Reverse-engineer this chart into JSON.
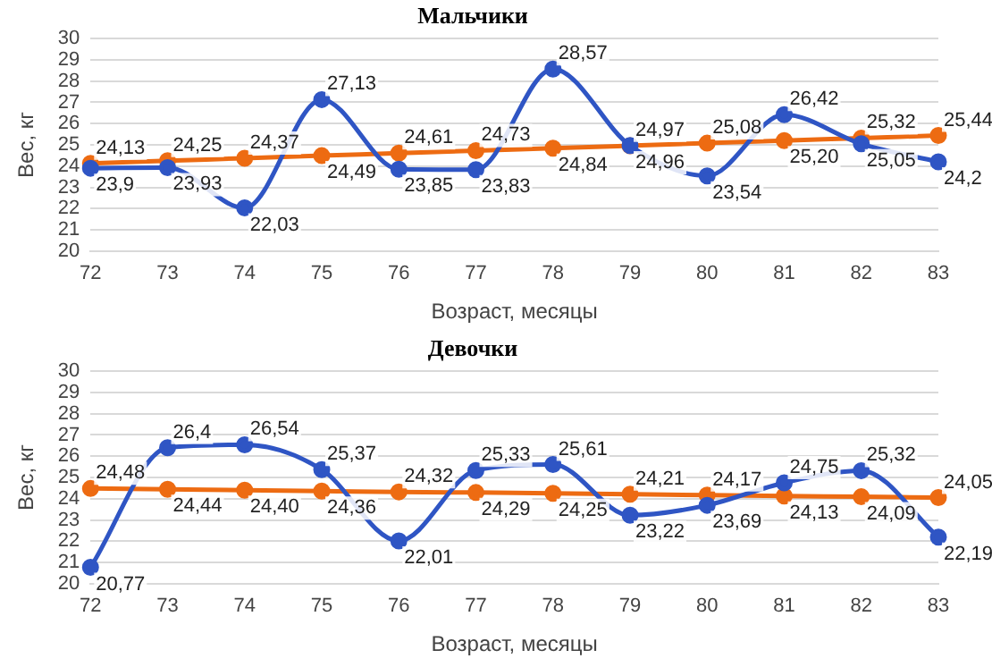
{
  "chart_data": [
    {
      "type": "line",
      "title": "Мальчики",
      "xlabel": "Возраст, месяцы",
      "ylabel": "Вес, кг",
      "categories": [
        "72",
        "73",
        "74",
        "75",
        "76",
        "77",
        "78",
        "79",
        "80",
        "81",
        "82",
        "83"
      ],
      "series": [
        {
          "color": "#2f55c4",
          "values": [
            23.9,
            23.93,
            22.03,
            27.13,
            23.85,
            23.83,
            28.57,
            24.97,
            23.54,
            26.42,
            25.05,
            24.2
          ],
          "value_labels": [
            "23,9",
            "23,93",
            "22,03",
            "27,13",
            "23,85",
            "23,83",
            "28,57",
            "24,97",
            "23,54",
            "26,42",
            "25,05",
            "24,2"
          ]
        },
        {
          "color": "#ed6b12",
          "values": [
            24.13,
            24.25,
            24.37,
            24.49,
            24.61,
            24.73,
            24.84,
            24.96,
            25.08,
            25.2,
            25.32,
            25.44
          ],
          "value_labels": [
            "24,13",
            "24,25",
            "24,37",
            "24,49",
            "24,61",
            "24,73",
            "24,84",
            "24,96",
            "25,08",
            "25,20",
            "25,32",
            "25,44"
          ]
        }
      ],
      "ylim": [
        20,
        30
      ],
      "yticks": [
        20,
        21,
        22,
        23,
        24,
        25,
        26,
        27,
        28,
        29,
        30
      ],
      "grid": "y",
      "marker": "circle",
      "line_style": "solid"
    },
    {
      "type": "line",
      "title": "Девочки",
      "xlabel": "Возраст, месяцы",
      "ylabel": "Вес, кг",
      "categories": [
        "72",
        "73",
        "74",
        "75",
        "76",
        "77",
        "78",
        "79",
        "80",
        "81",
        "82",
        "83"
      ],
      "series": [
        {
          "color": "#2f55c4",
          "values": [
            20.77,
            26.4,
            26.54,
            25.37,
            22.01,
            25.33,
            25.61,
            23.22,
            23.69,
            24.75,
            25.32,
            22.19
          ],
          "value_labels": [
            "20,77",
            "26,4",
            "26,54",
            "25,37",
            "22,01",
            "25,33",
            "25,61",
            "23,22",
            "23,69",
            "24,75",
            "25,32",
            "22,19"
          ]
        },
        {
          "color": "#ed6b12",
          "values": [
            24.48,
            24.44,
            24.4,
            24.36,
            24.32,
            24.29,
            24.25,
            24.21,
            24.17,
            24.13,
            24.09,
            24.05
          ],
          "value_labels": [
            "24,48",
            "24,44",
            "24,40",
            "24,36",
            "24,32",
            "24,29",
            "24,25",
            "24,21",
            "24,17",
            "24,13",
            "24,09",
            "24,05"
          ]
        }
      ],
      "ylim": [
        20,
        30
      ],
      "yticks": [
        20,
        21,
        22,
        23,
        24,
        25,
        26,
        27,
        28,
        29,
        30
      ],
      "grid": "y",
      "marker": "circle",
      "line_style": "solid"
    }
  ]
}
